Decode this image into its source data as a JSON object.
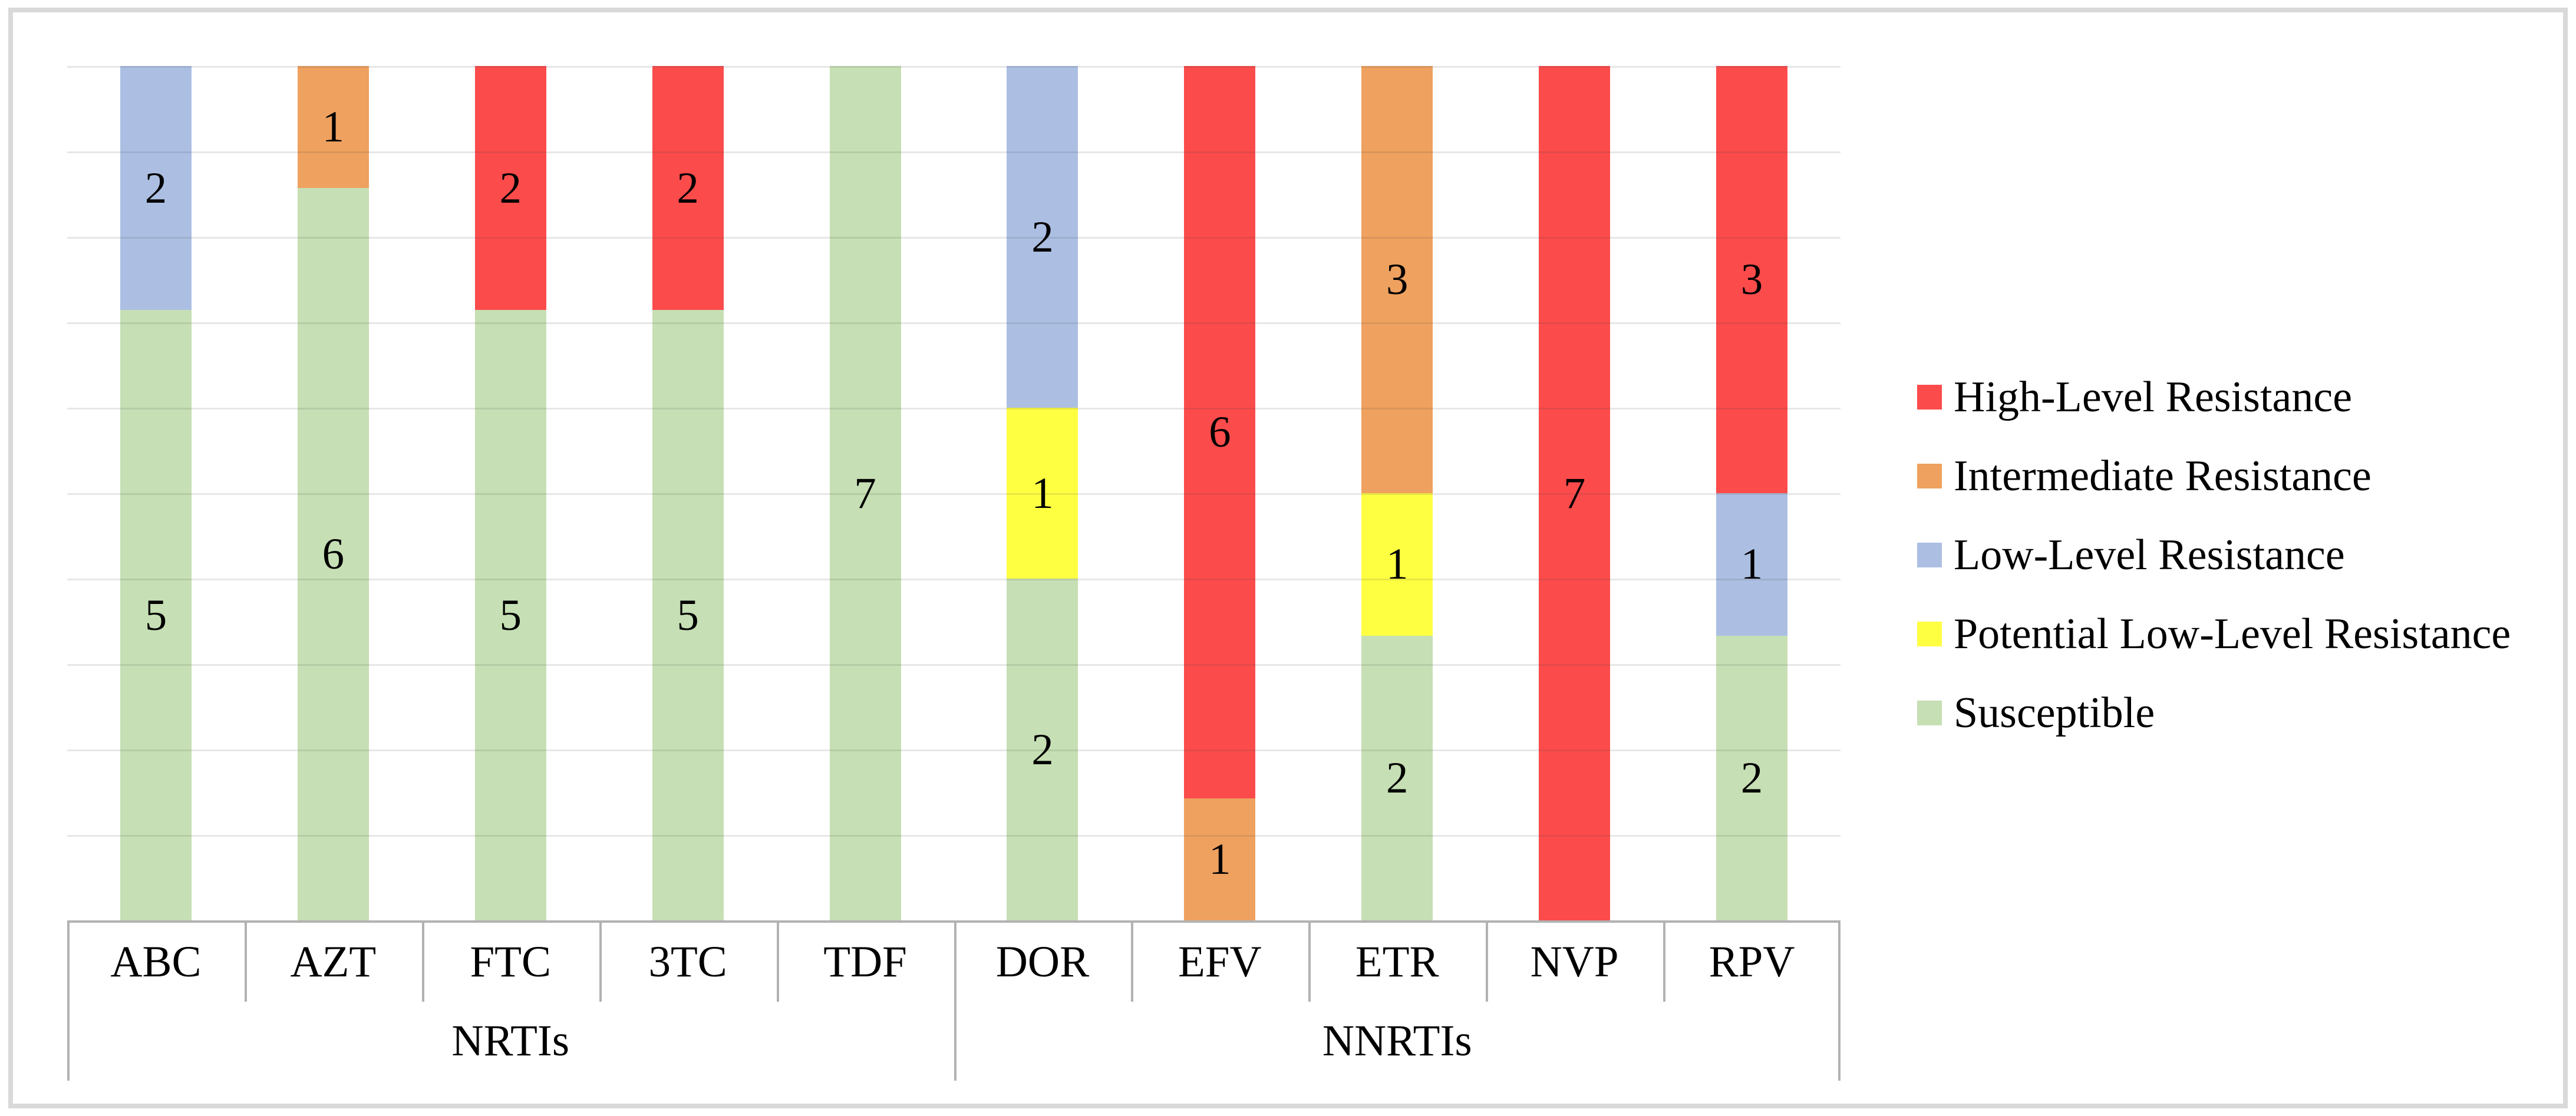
{
  "figure": {
    "background_color": "#FFFFFF",
    "border_color": "#D9D9D9",
    "grid_color": "#E3E3E3",
    "axis_border_color": "#B2B2B2"
  },
  "chart_data": {
    "type": "bar",
    "variant": "100-percent-stacked-column",
    "title": "",
    "xlabel": "",
    "ylabel": "",
    "gridlines": {
      "horizontal_interval_count": 10,
      "visible": true
    },
    "value_labels_shown": true,
    "categories": [
      "ABC",
      "AZT",
      "FTC",
      "3TC",
      "TDF",
      "DOR",
      "EFV",
      "ETR",
      "NVP",
      "RPV"
    ],
    "category_groups": [
      {
        "label": "NRTIs",
        "start": 0,
        "end": 4
      },
      {
        "label": "NNRTIs",
        "start": 5,
        "end": 9
      }
    ],
    "series": [
      {
        "name": "Susceptible",
        "color": "#C6DFB4",
        "values": [
          5,
          6,
          5,
          5,
          7,
          2,
          0,
          2,
          0,
          2
        ]
      },
      {
        "name": "Potential Low-Level Resistance",
        "color": "#FFFF42",
        "values": [
          0,
          0,
          0,
          0,
          0,
          1,
          0,
          1,
          0,
          0
        ]
      },
      {
        "name": "Low-Level Resistance",
        "color": "#ACBFE3",
        "values": [
          2,
          0,
          0,
          0,
          0,
          2,
          0,
          0,
          0,
          1
        ]
      },
      {
        "name": "Intermediate Resistance",
        "color": "#EFA15F",
        "values": [
          0,
          1,
          0,
          0,
          0,
          0,
          1,
          3,
          0,
          0
        ]
      },
      {
        "name": "High-Level Resistance",
        "color": "#FC4B4B",
        "values": [
          0,
          0,
          2,
          2,
          0,
          0,
          6,
          0,
          7,
          3
        ]
      }
    ],
    "bar_totals": [
      7,
      7,
      7,
      7,
      7,
      5,
      7,
      6,
      7,
      6
    ],
    "legend": {
      "position": "right",
      "entries": [
        {
          "label": "High-Level Resistance",
          "color": "#FC4B4B"
        },
        {
          "label": "Intermediate Resistance",
          "color": "#EFA15F"
        },
        {
          "label": "Low-Level Resistance",
          "color": "#ACBFE3"
        },
        {
          "label": "Potential Low-Level Resistance",
          "color": "#FFFF42"
        },
        {
          "label": "Susceptible",
          "color": "#C6DFB4"
        }
      ]
    }
  }
}
